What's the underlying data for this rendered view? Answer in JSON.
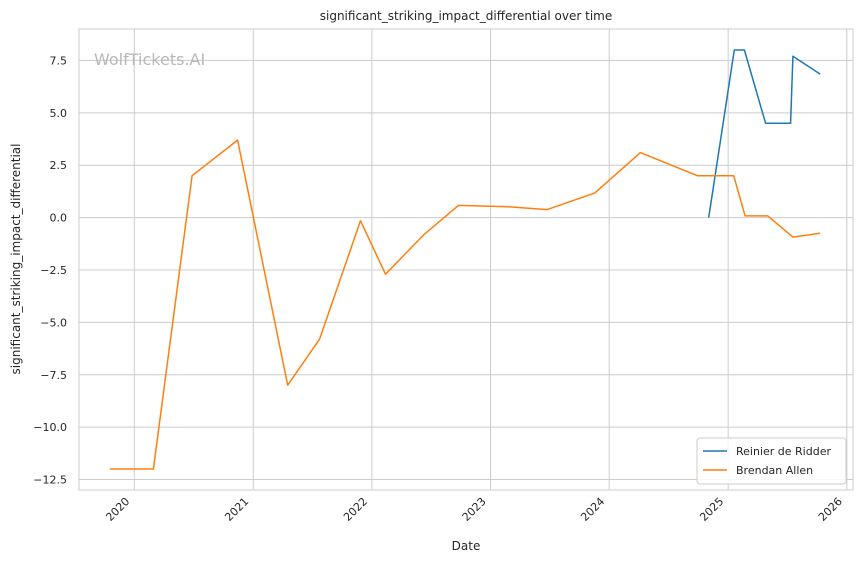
{
  "chart_data": {
    "type": "line",
    "title": "significant_striking_impact_differential over time",
    "xlabel": "Date",
    "ylabel": "significant_striking_impact_differential",
    "watermark": "WolfTickets.AI",
    "xlim": [
      "2019-07-15",
      "2026-01-20"
    ],
    "ylim": [
      -13.0,
      9.0
    ],
    "x_ticks": [
      "2020",
      "2021",
      "2022",
      "2023",
      "2024",
      "2025",
      "2026"
    ],
    "x_tick_dates": [
      "2020-01-01",
      "2021-01-01",
      "2022-01-01",
      "2023-01-01",
      "2024-01-01",
      "2025-01-01",
      "2026-01-01"
    ],
    "y_ticks": [
      7.5,
      5.0,
      2.5,
      0.0,
      -2.5,
      -5.0,
      -7.5,
      -10.0,
      -12.5
    ],
    "y_tick_labels": [
      "7.5",
      "5.0",
      "2.5",
      "0.0",
      "−2.5",
      "−5.0",
      "−7.5",
      "−10.0",
      "−12.5"
    ],
    "grid": true,
    "legend_position": "bottom-right",
    "series": [
      {
        "name": "Reinier de Ridder",
        "color": "#1f77b4",
        "points": [
          {
            "x": "2024-11-02",
            "y": 0.0
          },
          {
            "x": "2025-01-20",
            "y": 8.0
          },
          {
            "x": "2025-02-20",
            "y": 8.0
          },
          {
            "x": "2025-04-26",
            "y": 4.5
          },
          {
            "x": "2025-07-12",
            "y": 4.5
          },
          {
            "x": "2025-07-19",
            "y": 7.7
          },
          {
            "x": "2025-10-11",
            "y": 6.85
          }
        ]
      },
      {
        "name": "Brendan Allen",
        "color": "#ff7f0e",
        "points": [
          {
            "x": "2019-10-18",
            "y": -12.0
          },
          {
            "x": "2020-02-29",
            "y": -12.0
          },
          {
            "x": "2020-06-27",
            "y": 2.0
          },
          {
            "x": "2020-11-14",
            "y": 3.7
          },
          {
            "x": "2021-04-17",
            "y": -8.0
          },
          {
            "x": "2021-07-24",
            "y": -5.8
          },
          {
            "x": "2021-11-27",
            "y": -0.15
          },
          {
            "x": "2022-02-12",
            "y": -2.7
          },
          {
            "x": "2022-06-11",
            "y": -0.8
          },
          {
            "x": "2022-09-24",
            "y": 0.58
          },
          {
            "x": "2023-02-25",
            "y": 0.52
          },
          {
            "x": "2023-06-24",
            "y": 0.38
          },
          {
            "x": "2023-11-18",
            "y": 1.18
          },
          {
            "x": "2024-04-06",
            "y": 3.1
          },
          {
            "x": "2024-09-28",
            "y": 2.0
          },
          {
            "x": "2025-01-18",
            "y": 2.0
          },
          {
            "x": "2025-02-22",
            "y": 0.08
          },
          {
            "x": "2025-05-03",
            "y": 0.08
          },
          {
            "x": "2025-07-19",
            "y": -0.93
          },
          {
            "x": "2025-10-11",
            "y": -0.75
          }
        ]
      }
    ]
  }
}
